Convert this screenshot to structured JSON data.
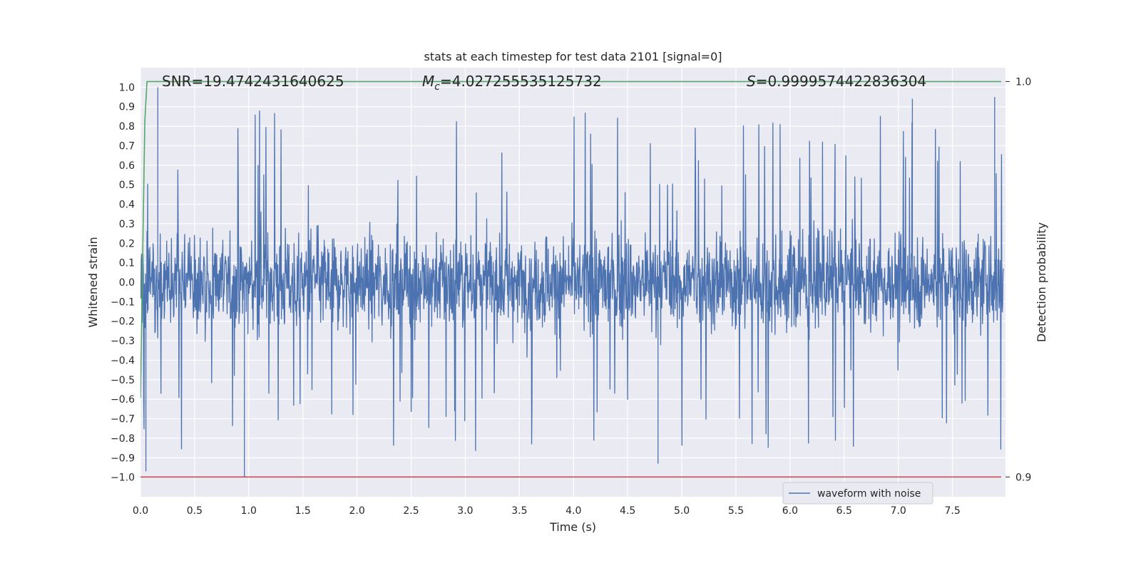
{
  "chart_data": {
    "type": "line",
    "title": "stats at each timestep for test data 2101 [signal=0]",
    "xlabel": "Time (s)",
    "ylabel": "Whitened strain",
    "y2label": "Detection probability",
    "xlim": [
      0.0,
      7.99
    ],
    "ylim": [
      -1.1,
      1.1
    ],
    "y2lim": [
      0.895,
      1.0035
    ],
    "xticks": [
      "0.0",
      "0.5",
      "1.0",
      "1.5",
      "2.0",
      "2.5",
      "3.0",
      "3.5",
      "4.0",
      "4.5",
      "5.0",
      "5.5",
      "6.0",
      "6.5",
      "7.0",
      "7.5"
    ],
    "yticks": [
      "1.0",
      "0.9",
      "0.8",
      "0.7",
      "0.6",
      "0.5",
      "0.4",
      "0.3",
      "0.2",
      "0.1",
      "0.0",
      "−0.1",
      "−0.2",
      "−0.3",
      "−0.4",
      "−0.5",
      "−0.6",
      "−0.7",
      "−0.8",
      "−0.9",
      "−1.0"
    ],
    "y2ticks": [
      "1.0",
      "0.9"
    ],
    "grid": true,
    "legend_position": "lower-right",
    "annotations": {
      "snr": "SNR=19.4742431640625",
      "mc_symbol": "M",
      "mc_subscript": "c",
      "mc_value": "=4.027255535125732",
      "s_symbol": "S",
      "s_value": "=0.9999574422836304"
    },
    "series": [
      {
        "name": "waveform with noise",
        "axis": "left",
        "color": "#4c72b0",
        "description": "whitened strain noise, mostly within ±0.35 with spikes up to ±1.0",
        "peaks": [
          {
            "x": 0.05,
            "y": -0.97
          },
          {
            "x": 0.16,
            "y": 1.0
          },
          {
            "x": 0.96,
            "y": -1.0
          },
          {
            "x": 1.1,
            "y": 0.88
          },
          {
            "x": 4.78,
            "y": -0.93
          },
          {
            "x": 7.13,
            "y": 0.94
          },
          {
            "x": 7.89,
            "y": 0.95
          }
        ]
      },
      {
        "name": "",
        "axis": "right",
        "color": "#55a868",
        "x": [
          0.0,
          0.02,
          0.04,
          0.06,
          7.95
        ],
        "y": [
          0.92,
          0.955,
          0.99,
          1.0,
          1.0
        ]
      },
      {
        "name": "",
        "axis": "right",
        "color": "#c44e52",
        "x": [
          0.0,
          7.95
        ],
        "y": [
          0.9,
          0.9
        ]
      }
    ],
    "colors": {
      "plot_background": "#eaeaf2",
      "grid": "#ffffff",
      "text": "#262626"
    }
  }
}
